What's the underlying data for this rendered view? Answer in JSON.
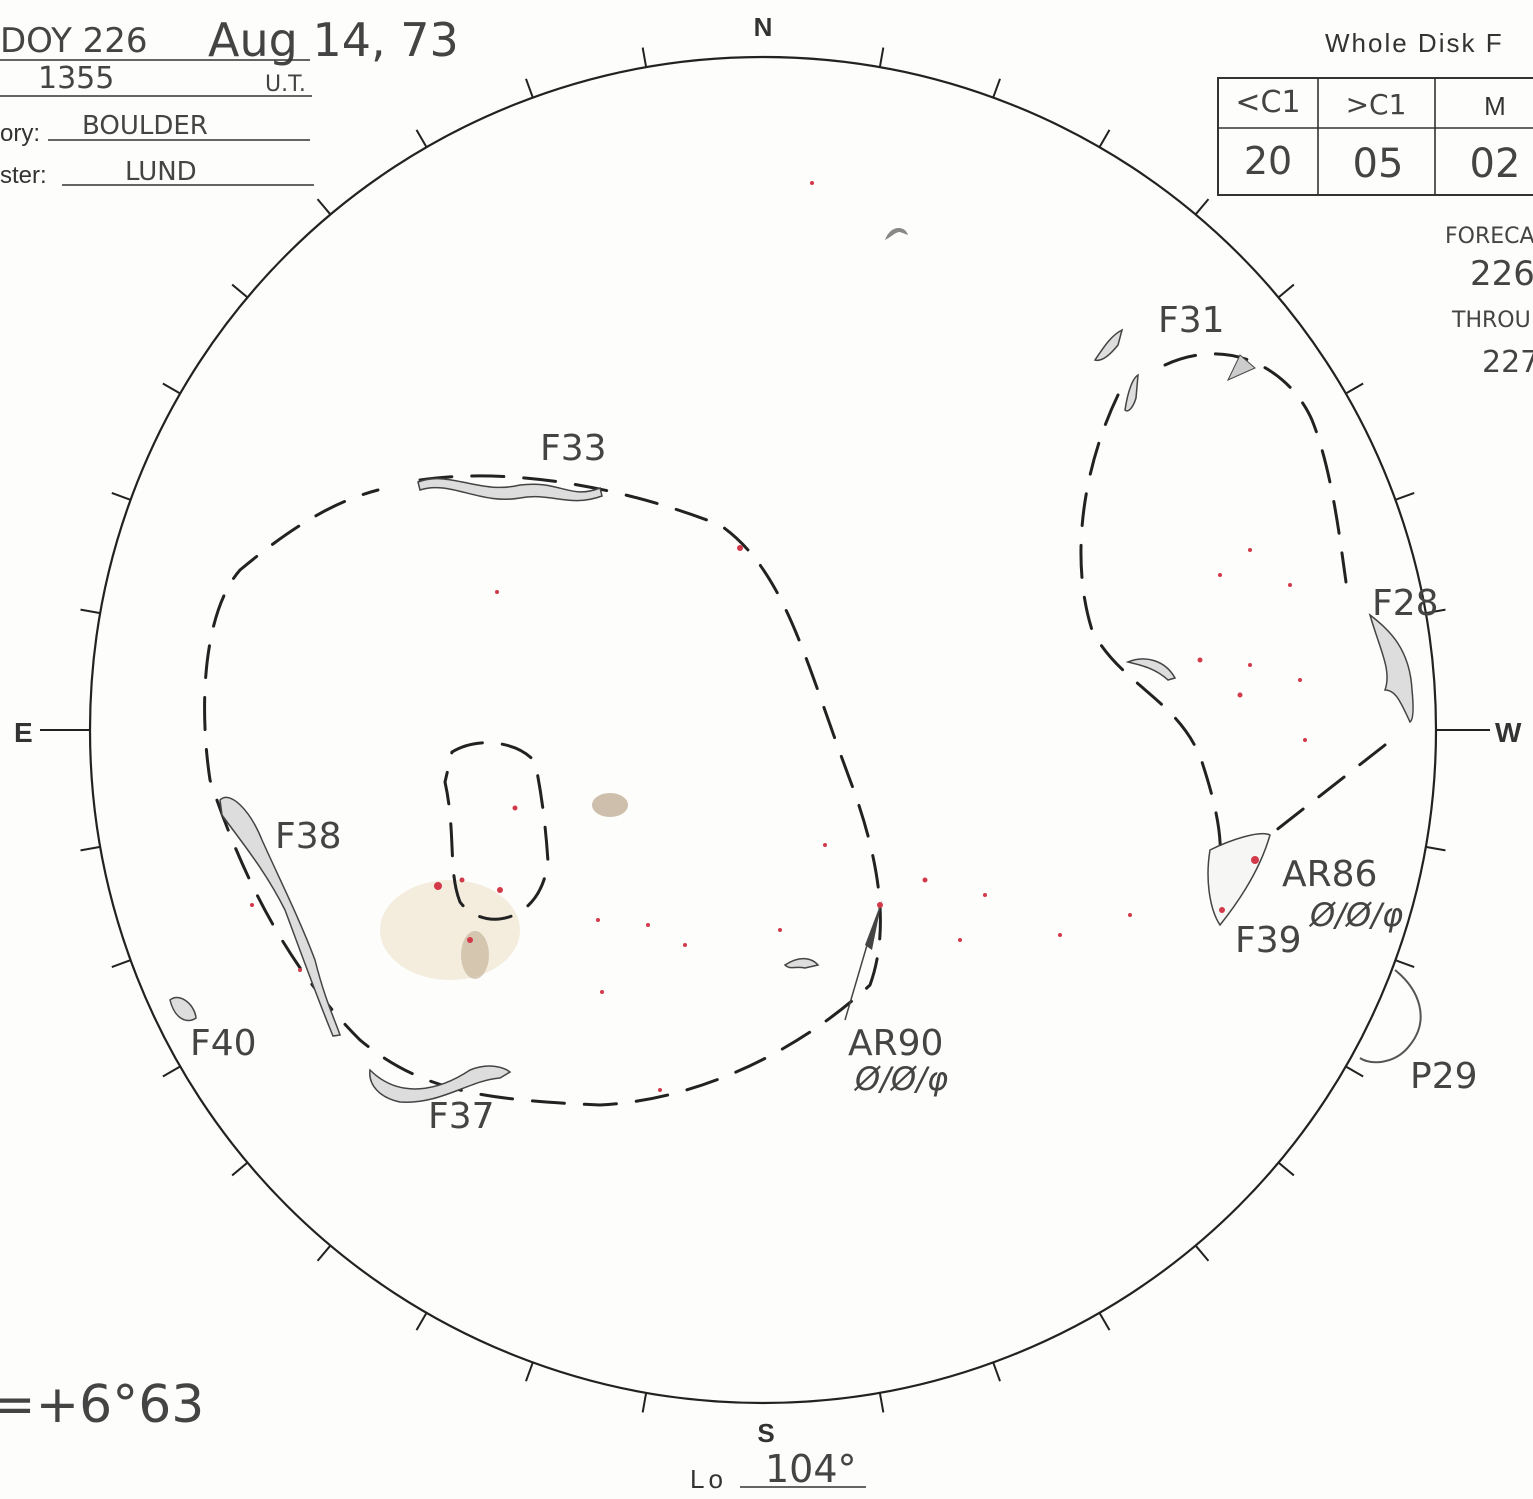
{
  "header": {
    "doy": "DOY 226",
    "date": "Aug 14, 73",
    "time": "1355",
    "time_unit": "U.T.",
    "observatory_label": "ory:",
    "observatory": "BOULDER",
    "forecaster_label": "ster:",
    "forecaster": "LUND"
  },
  "flare_table": {
    "title": "Whole Disk F",
    "headers": [
      "<C1",
      ">C1",
      "M"
    ],
    "values": [
      "20",
      "05",
      "02"
    ]
  },
  "forecast": {
    "label": "FORECA",
    "from": "226",
    "through_label": "THROU",
    "to": "227"
  },
  "compass": {
    "north": "N",
    "south": "S",
    "east": "E",
    "west": "W"
  },
  "features": [
    {
      "label": "F31"
    },
    {
      "label": "F33"
    },
    {
      "label": "F28"
    },
    {
      "label": "F38"
    },
    {
      "label": "AR86",
      "note": "Ø/Ø/φ"
    },
    {
      "label": "F39"
    },
    {
      "label": "F40"
    },
    {
      "label": "F37"
    },
    {
      "label": "AR90",
      "note": "Ø/Ø/φ"
    },
    {
      "label": "P29"
    }
  ],
  "footer": {
    "b0": "=+6°63",
    "lo_label": "Lo",
    "lo": "104°"
  }
}
